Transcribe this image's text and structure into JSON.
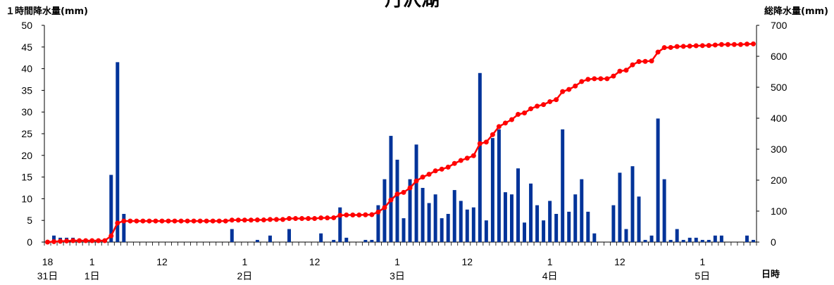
{
  "chart_data": {
    "type": "bar",
    "title": "丹沢湖",
    "ylabel_left": "１時間降水量(mm)",
    "ylabel_right": "総降水量(mm)",
    "xlabel": "日時",
    "ylim_left": [
      0,
      50
    ],
    "ylim_right": [
      0,
      700
    ],
    "yticks_left": [
      "0",
      "5",
      "10",
      "15",
      "20",
      "25",
      "30",
      "35",
      "40",
      "45",
      "50"
    ],
    "yticks_right": [
      "0",
      "100",
      "200",
      "300",
      "400",
      "500",
      "600",
      "700"
    ],
    "x_tick_labels": [
      {
        "index": 0,
        "hour": "18",
        "day": "31日"
      },
      {
        "index": 7,
        "hour": "1",
        "day": "1日"
      },
      {
        "index": 18,
        "hour": "12",
        "day": ""
      },
      {
        "index": 31,
        "hour": "1",
        "day": "2日"
      },
      {
        "index": 42,
        "hour": "12",
        "day": ""
      },
      {
        "index": 55,
        "hour": "1",
        "day": "3日"
      },
      {
        "index": 66,
        "hour": "12",
        "day": ""
      },
      {
        "index": 79,
        "hour": "1",
        "day": "4日"
      },
      {
        "index": 90,
        "hour": "12",
        "day": ""
      },
      {
        "index": 103,
        "hour": "1",
        "day": "5日"
      }
    ],
    "series": [
      {
        "name": "１時間降水量",
        "axis": "left",
        "type": "bar",
        "color": "#003399",
        "values": [
          0,
          1.5,
          1,
          1,
          1,
          0,
          0,
          0,
          0,
          0,
          15.5,
          41.5,
          6.5,
          0,
          0,
          0,
          0,
          0,
          0,
          0,
          0,
          0,
          0,
          0,
          0,
          0,
          0,
          0,
          0,
          3,
          0,
          0,
          0,
          0.5,
          0,
          1.5,
          0,
          0,
          3,
          0,
          0,
          0,
          0,
          2,
          0,
          0.5,
          8,
          1,
          0,
          0,
          0.5,
          0.5,
          8.5,
          14.5,
          24.5,
          19,
          5.5,
          14.5,
          22.5,
          12.5,
          9,
          11,
          5.5,
          6.5,
          12,
          9.5,
          7.5,
          8,
          39,
          5,
          24,
          26,
          11.5,
          11,
          17,
          4.5,
          13.5,
          8.5,
          5,
          9.5,
          6.5,
          26,
          7,
          11,
          14.5,
          7,
          2,
          0,
          0,
          8.5,
          16,
          3,
          17.5,
          10.5,
          0.5,
          1.5,
          28.5,
          14.5,
          0.5,
          3,
          0.5,
          1,
          1,
          0.5,
          0.5,
          1.5,
          1.5,
          0,
          0,
          0,
          1.5,
          0.5
        ]
      },
      {
        "name": "総降水量",
        "axis": "right",
        "type": "line",
        "color": "#ff0000",
        "values": [
          0,
          1.5,
          2.5,
          3.5,
          4.5,
          4.5,
          4.5,
          4.5,
          4.5,
          4.5,
          20,
          61.5,
          68,
          68,
          68,
          68,
          68,
          68,
          68,
          68,
          68,
          68,
          68,
          68,
          68,
          68,
          68,
          68,
          68,
          71,
          71,
          71,
          71,
          71.5,
          71.5,
          73,
          73,
          73,
          76,
          76,
          76,
          76,
          76,
          78,
          78,
          78.5,
          86.5,
          87.5,
          87.5,
          87.5,
          88,
          88.5,
          97,
          111.5,
          136,
          155,
          160.5,
          175,
          197.5,
          210,
          219,
          230,
          235.5,
          242,
          254,
          263.5,
          271,
          279,
          318,
          323,
          347,
          373,
          384.5,
          395.5,
          412.5,
          417,
          430.5,
          439,
          444,
          453.5,
          460,
          486,
          493,
          504,
          518.5,
          525.5,
          527.5,
          527.5,
          527.5,
          536,
          552,
          555,
          572.5,
          583,
          583.5,
          585,
          613.5,
          628,
          628.5,
          631.5,
          632,
          633,
          634,
          634.5,
          635,
          636.5,
          638,
          638,
          638,
          638,
          639.5,
          640
        ]
      }
    ],
    "grid": false,
    "legend": "none"
  }
}
